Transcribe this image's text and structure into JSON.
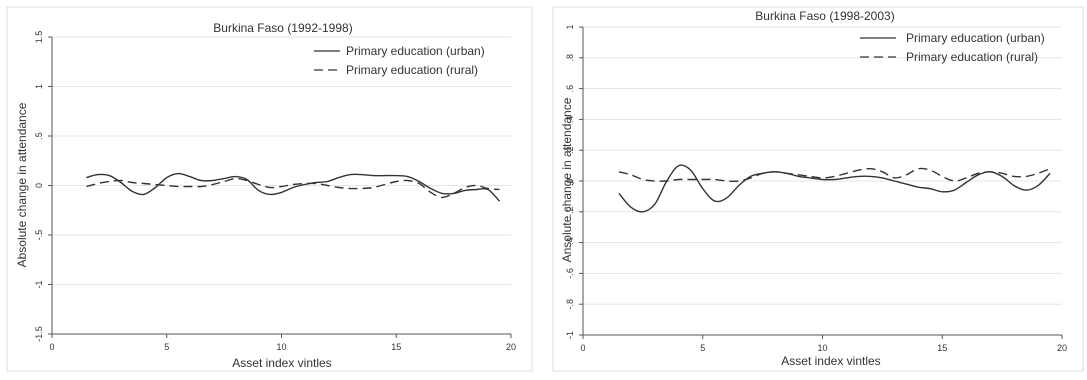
{
  "chart_data": [
    {
      "type": "line",
      "title": "Burkina Faso (1992-1998)",
      "xlabel": "Asset index vintles",
      "ylabel": "Absolute change in attendance",
      "xlim": [
        0,
        20
      ],
      "ylim": [
        -1.5,
        1.5
      ],
      "xticks": [
        "0",
        "5",
        "10",
        "15",
        "20"
      ],
      "yticks": [
        "-1.5",
        "-1",
        "-.5",
        "0",
        ".5",
        "1",
        "1.5"
      ],
      "grid": true,
      "legend_position": "top-right",
      "series": [
        {
          "name": "Primary education (urban)",
          "style": "solid",
          "x": [
            1.5,
            2,
            2.5,
            3,
            3.5,
            4,
            4.5,
            5,
            5.5,
            6,
            6.5,
            7,
            7.5,
            8,
            8.5,
            9,
            9.5,
            10,
            10.5,
            11,
            11.5,
            12,
            12.5,
            13,
            13.5,
            14,
            14.5,
            15,
            15.5,
            16,
            16.5,
            17,
            17.5,
            18,
            18.5,
            19,
            19.5
          ],
          "y": [
            0.08,
            0.11,
            0.1,
            0.03,
            -0.06,
            -0.09,
            -0.02,
            0.08,
            0.12,
            0.09,
            0.05,
            0.05,
            0.07,
            0.09,
            0.06,
            -0.05,
            -0.09,
            -0.07,
            -0.02,
            0.01,
            0.03,
            0.04,
            0.08,
            0.11,
            0.11,
            0.1,
            0.1,
            0.1,
            0.09,
            0.04,
            -0.03,
            -0.08,
            -0.08,
            -0.05,
            -0.04,
            -0.04,
            -0.16
          ]
        },
        {
          "name": "Primary education (rural)",
          "style": "dashed",
          "x": [
            1.5,
            2,
            2.5,
            3,
            3.5,
            4,
            4.5,
            5,
            5.5,
            6,
            6.5,
            7,
            7.5,
            8,
            8.5,
            9,
            9.5,
            10,
            10.5,
            11,
            11.5,
            12,
            12.5,
            13,
            13.5,
            14,
            14.5,
            15,
            15.5,
            16,
            16.5,
            17,
            17.5,
            18,
            18.5,
            19,
            19.5
          ],
          "y": [
            -0.01,
            0.02,
            0.04,
            0.05,
            0.03,
            0.02,
            0.01,
            0.0,
            -0.01,
            -0.01,
            -0.01,
            0.01,
            0.04,
            0.07,
            0.05,
            0.01,
            -0.02,
            -0.01,
            0.01,
            0.02,
            0.02,
            0.0,
            -0.02,
            -0.03,
            -0.03,
            -0.02,
            0.01,
            0.04,
            0.05,
            0.02,
            -0.07,
            -0.12,
            -0.08,
            -0.02,
            0.0,
            -0.03,
            -0.04
          ]
        }
      ]
    },
    {
      "type": "line",
      "title": "Burkina Faso (1998-2003)",
      "xlabel": "Asset index vintles",
      "ylabel": "Ansolute change in attendance",
      "xlim": [
        0,
        20
      ],
      "ylim": [
        -1,
        1
      ],
      "xticks": [
        "0",
        "5",
        "10",
        "15",
        "20"
      ],
      "yticks": [
        "-1",
        "-.8",
        "-.6",
        "-.4",
        "-.2",
        "0",
        ".2",
        ".4",
        ".6",
        ".8",
        "1"
      ],
      "grid": true,
      "legend_position": "top-right",
      "series": [
        {
          "name": "Primary education (urban)",
          "style": "solid",
          "x": [
            1.5,
            2,
            2.5,
            3,
            3.5,
            4,
            4.5,
            5,
            5.5,
            6,
            6.5,
            7,
            7.5,
            8,
            8.5,
            9,
            9.5,
            10,
            10.5,
            11,
            11.5,
            12,
            12.5,
            13,
            13.5,
            14,
            14.5,
            15,
            15.5,
            16,
            16.5,
            17,
            17.5,
            18,
            18.5,
            19,
            19.5
          ],
          "y": [
            -0.08,
            -0.17,
            -0.2,
            -0.15,
            0.0,
            0.1,
            0.07,
            -0.05,
            -0.13,
            -0.11,
            -0.03,
            0.03,
            0.05,
            0.06,
            0.05,
            0.03,
            0.02,
            0.01,
            0.01,
            0.02,
            0.03,
            0.03,
            0.02,
            0.0,
            -0.02,
            -0.04,
            -0.05,
            -0.07,
            -0.06,
            -0.01,
            0.04,
            0.06,
            0.03,
            -0.03,
            -0.06,
            -0.03,
            0.05
          ]
        },
        {
          "name": "Primary education (rural)",
          "style": "dashed",
          "x": [
            1.5,
            2,
            2.5,
            3,
            3.5,
            4,
            4.5,
            5,
            5.5,
            6,
            6.5,
            7,
            7.5,
            8,
            8.5,
            9,
            9.5,
            10,
            10.5,
            11,
            11.5,
            12,
            12.5,
            13,
            13.5,
            14,
            14.5,
            15,
            15.5,
            16,
            16.5,
            17,
            17.5,
            18,
            18.5,
            19,
            19.5
          ],
          "y": [
            0.06,
            0.04,
            0.01,
            0.0,
            0.0,
            0.01,
            0.01,
            0.01,
            0.01,
            0.0,
            0.0,
            0.02,
            0.05,
            0.06,
            0.05,
            0.04,
            0.03,
            0.02,
            0.03,
            0.05,
            0.07,
            0.08,
            0.06,
            0.02,
            0.04,
            0.08,
            0.07,
            0.03,
            0.0,
            0.02,
            0.05,
            0.06,
            0.05,
            0.03,
            0.03,
            0.05,
            0.08
          ]
        }
      ]
    }
  ]
}
